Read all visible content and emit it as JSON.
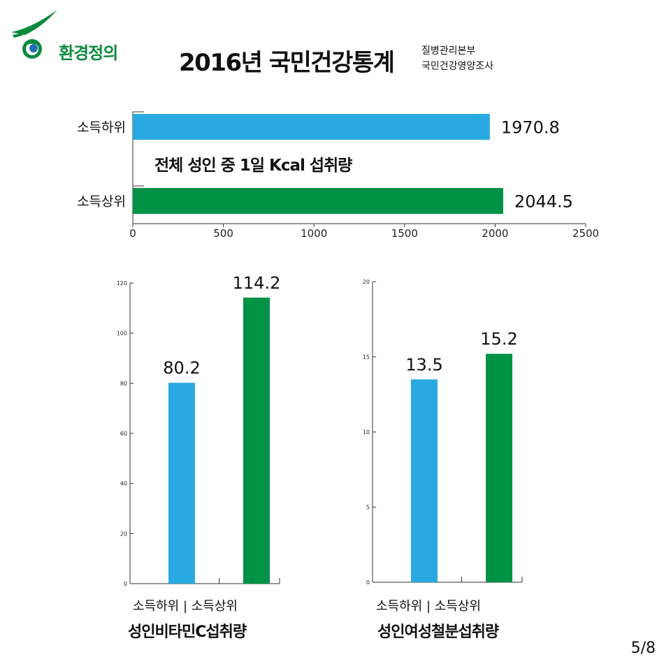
{
  "header": {
    "logo_text": "환경정의",
    "title": "2016년 국민건강통계",
    "source_line1": "질병관리본부",
    "source_line2": "국민건강영양조사"
  },
  "colors": {
    "low": "#29a9e1",
    "high": "#009245",
    "logo": "#0a8a3c"
  },
  "chart_data": [
    {
      "type": "bar",
      "orientation": "horizontal",
      "title": "전체 성인 중 1일 Kcal 섭취량",
      "categories": [
        "소득하위",
        "소득상위"
      ],
      "values": [
        1970.8,
        2044.5
      ],
      "value_labels": [
        "1970.8",
        "2044.5"
      ],
      "xlim": [
        0,
        2500
      ],
      "ticks": [
        0,
        500,
        1000,
        1500,
        2000,
        2500
      ],
      "tick_labels": [
        "0",
        "500",
        "1000",
        "1500",
        "2000",
        "2500"
      ]
    },
    {
      "type": "bar",
      "title": "성인비타민C섭취량",
      "categories": [
        "소득하위",
        "소득상위"
      ],
      "category_text": "소득하위 | 소득상위",
      "values": [
        80.2,
        114.2
      ],
      "value_labels": [
        "80.2",
        "114.2"
      ],
      "ylim": [
        0,
        120
      ],
      "ticks": [
        0,
        20,
        40,
        60,
        80,
        100,
        120
      ],
      "tick_labels": [
        "0",
        "20",
        "40",
        "60",
        "80",
        "100",
        "120"
      ]
    },
    {
      "type": "bar",
      "title": "성인여성철분섭취량",
      "categories": [
        "소득하위",
        "소득상위"
      ],
      "category_text": "소득하위 | 소득상위",
      "values": [
        13.5,
        15.2
      ],
      "value_labels": [
        "13.5",
        "15.2"
      ],
      "ylim": [
        0,
        20
      ],
      "ticks": [
        0,
        5,
        10,
        15,
        20
      ],
      "tick_labels": [
        "0",
        "5",
        "10",
        "15",
        "20"
      ]
    }
  ],
  "footer": {
    "page": "5/8"
  }
}
